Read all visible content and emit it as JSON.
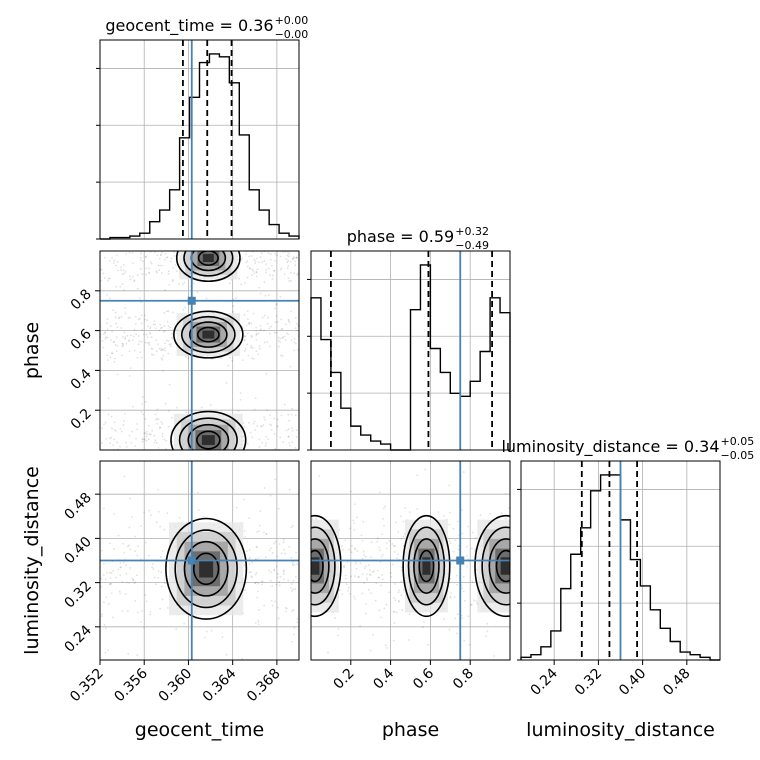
{
  "chart_data": {
    "type": "corner",
    "colors": {
      "truth": "#4682b4",
      "hist": "#000000",
      "grid": "#b0b0b0",
      "samples": "#000000"
    },
    "titles": [
      {
        "name": "geocent_time",
        "value": "0.36",
        "plus": "+0.00",
        "minus": "−0.00"
      },
      {
        "name": "phase",
        "value": "0.59",
        "plus": "+0.32",
        "minus": "−0.49"
      },
      {
        "name": "luminosity_distance",
        "value": "0.34",
        "plus": "+0.05",
        "minus": "−0.05"
      }
    ],
    "axis_labels": {
      "geocent_time": "geocent_time",
      "phase": "phase",
      "luminosity_distance": "luminosity_distance"
    },
    "ranges": {
      "geocent_time": [
        0.352,
        0.37
      ],
      "phase": [
        0.0,
        1.0
      ],
      "luminosity_distance": [
        0.18,
        0.54
      ]
    },
    "ticks": {
      "geocent_time": [
        "0.352",
        "0.356",
        "0.360",
        "0.364",
        "0.368"
      ],
      "phase": [
        "0.2",
        "0.4",
        "0.6",
        "0.8"
      ],
      "luminosity_distance": [
        "0.24",
        "0.32",
        "0.40",
        "0.48"
      ]
    },
    "truths": {
      "geocent_time": 0.3603,
      "phase": 0.75,
      "luminosity_distance": 0.36
    },
    "quantiles": {
      "geocent_time": [
        0.3595,
        0.3617,
        0.3639
      ],
      "phase": [
        0.1,
        0.59,
        0.91
      ],
      "luminosity_distance": [
        0.29,
        0.34,
        0.39
      ]
    },
    "histograms": {
      "geocent_time": {
        "bin_start": 0.352,
        "bin_width": 0.0009,
        "counts": [
          0,
          0.5,
          0.5,
          1,
          2,
          6,
          10,
          17,
          35,
          49,
          61,
          64,
          63,
          54,
          36,
          17,
          10,
          5,
          2,
          1
        ]
      },
      "phase": {
        "bin_start": 0.0,
        "bin_width": 0.05,
        "counts": [
          51,
          37,
          26,
          14,
          8,
          5,
          3,
          2,
          0,
          0,
          47,
          62,
          34,
          26,
          19,
          18,
          23,
          33,
          51,
          46
        ]
      },
      "luminosity_distance": {
        "bin_start": 0.18,
        "bin_width": 0.018,
        "counts": [
          1,
          2,
          5,
          11,
          27,
          40,
          50,
          64,
          70,
          70,
          53,
          38,
          28,
          19,
          12,
          7,
          3,
          2,
          1,
          0
        ]
      }
    },
    "blobs": {
      "geocent_time_vs_phase": [
        {
          "cx": 0.3618,
          "cy": 0.965,
          "sx": 0.0011,
          "sy": 0.045
        },
        {
          "cx": 0.3618,
          "cy": 0.58,
          "sx": 0.0012,
          "sy": 0.045
        },
        {
          "cx": 0.3618,
          "cy": 0.05,
          "sx": 0.0013,
          "sy": 0.055
        }
      ],
      "geocent_time_vs_luminosity_distance": [
        {
          "cx": 0.3616,
          "cy": 0.345,
          "sx": 0.0014,
          "sy": 0.035
        }
      ],
      "phase_vs_luminosity_distance": [
        {
          "cx": 0.02,
          "cy": 0.35,
          "sx": 0.05,
          "sy": 0.035
        },
        {
          "cx": 0.58,
          "cy": 0.35,
          "sx": 0.045,
          "sy": 0.035
        },
        {
          "cx": 0.98,
          "cy": 0.35,
          "sx": 0.06,
          "sy": 0.035
        }
      ]
    }
  }
}
